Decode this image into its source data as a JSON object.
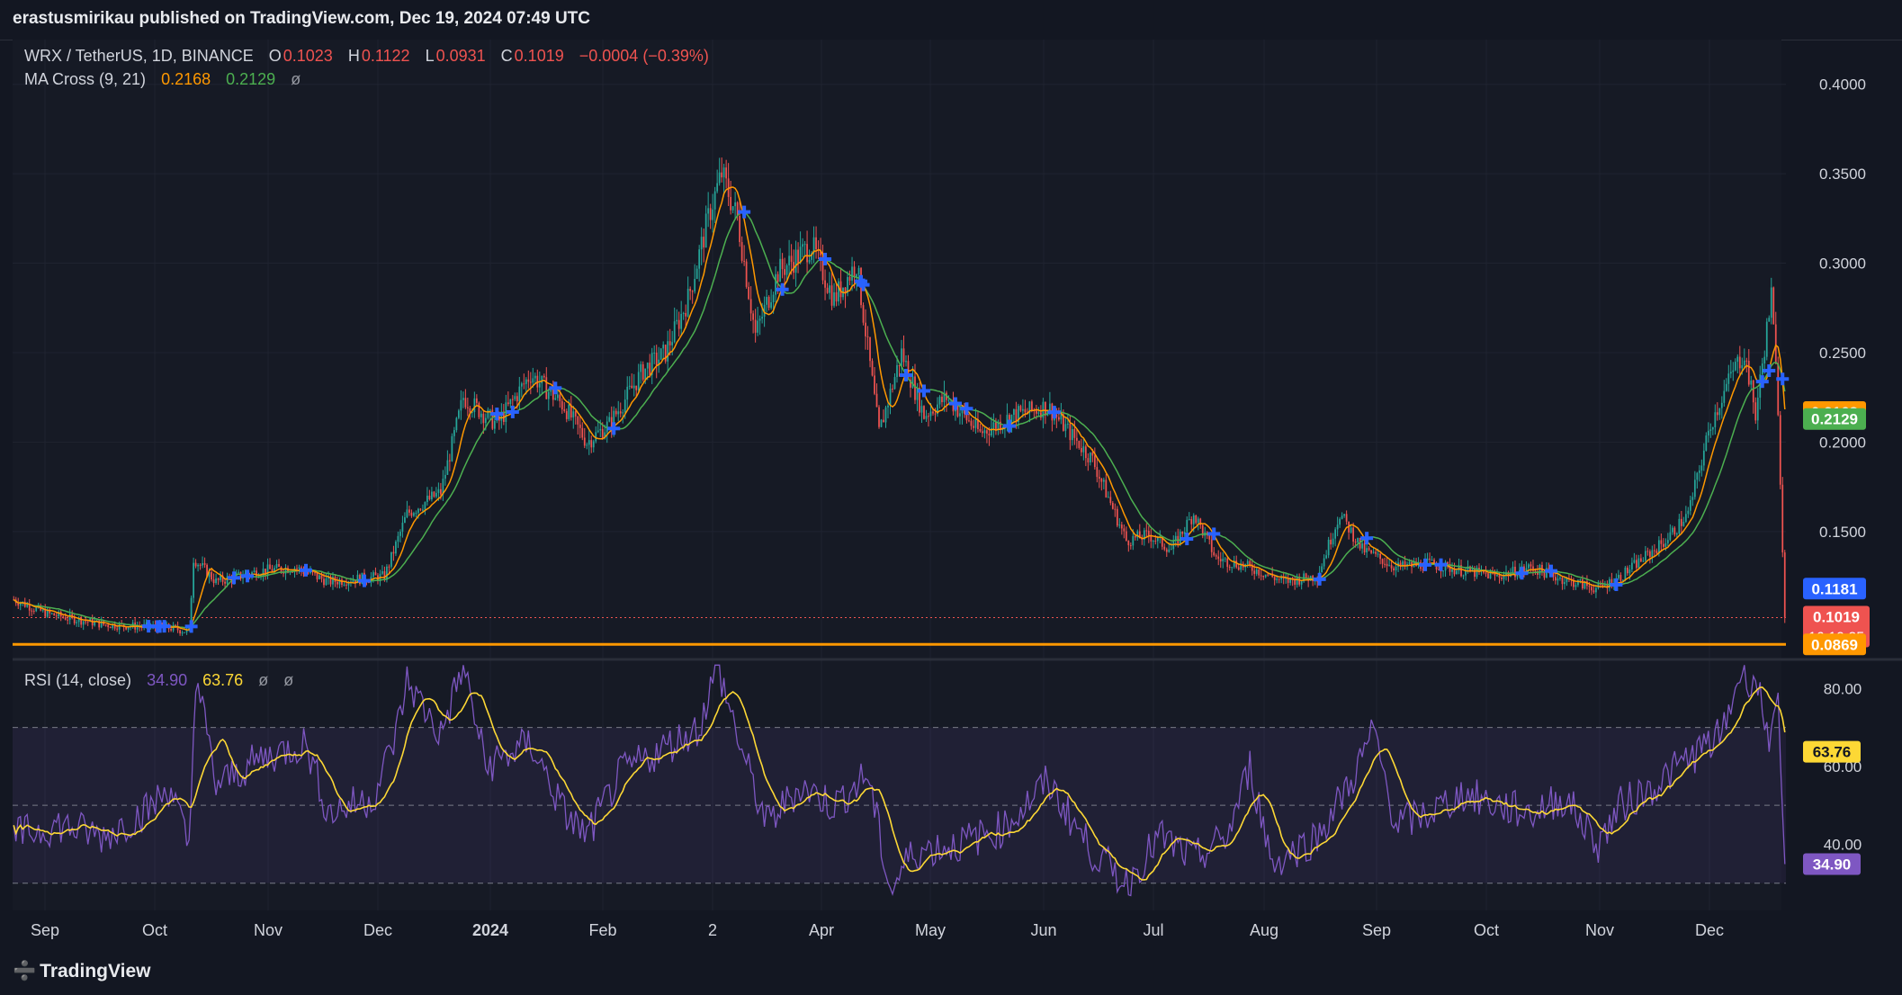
{
  "header": {
    "published": "erastusmirikau published on TradingView.com, Dec 19, 2024 07:49 UTC"
  },
  "legend": {
    "symbol": "WRX / TetherUS, 1D, BINANCE",
    "o_label": "O",
    "o_val": "0.1023",
    "h_label": "H",
    "h_val": "0.1122",
    "l_label": "L",
    "l_val": "0.0931",
    "c_label": "C",
    "c_val": "0.1019",
    "change": "−0.0004 (−0.39%)",
    "ma_title": "MA Cross (9, 21)",
    "ma_fast": "0.2168",
    "ma_slow": "0.2129",
    "ma_sym": "ø",
    "rsi_title": "RSI (14, close)",
    "rsi_val": "34.90",
    "rsi_ma": "63.76",
    "rsi_sym1": "ø",
    "rsi_sym2": "ø"
  },
  "footer": {
    "brand": "TradingView"
  },
  "colors": {
    "up": "#26a69a",
    "down": "#ef5350",
    "ma_fast": "#ff9800",
    "ma_slow": "#4caf50",
    "rsi": "#7e57c2",
    "rsi_ma": "#fdd835",
    "hline": "#ff9800",
    "cross": "#2962ff",
    "blue_tag": "#2962ff"
  },
  "chart_data": [
    {
      "type": "candlestick",
      "title": "WRX / TetherUS, 1D, BINANCE",
      "y_axis_ticks": [
        "0.1500",
        "0.2000",
        "0.2500",
        "0.3000",
        "0.3500",
        "0.4000"
      ],
      "ylim": [
        0.079,
        0.425
      ],
      "x_axis_ticks": [
        "Sep",
        "Oct",
        "Nov",
        "Dec",
        "2024",
        "Feb",
        "2",
        "Apr",
        "May",
        "Jun",
        "Jul",
        "Aug",
        "Sep",
        "Oct",
        "Nov",
        "Dec"
      ],
      "price_path": [
        {
          "d": 0,
          "v": 0.112
        },
        {
          "d": 15,
          "v": 0.104
        },
        {
          "d": 40,
          "v": 0.098
        },
        {
          "d": 70,
          "v": 0.096
        },
        {
          "d": 78,
          "v": 0.094
        },
        {
          "d": 80,
          "v": 0.135
        },
        {
          "d": 90,
          "v": 0.122
        },
        {
          "d": 110,
          "v": 0.128
        },
        {
          "d": 125,
          "v": 0.13
        },
        {
          "d": 140,
          "v": 0.122
        },
        {
          "d": 165,
          "v": 0.125
        },
        {
          "d": 175,
          "v": 0.16
        },
        {
          "d": 190,
          "v": 0.172
        },
        {
          "d": 200,
          "v": 0.225
        },
        {
          "d": 215,
          "v": 0.21
        },
        {
          "d": 230,
          "v": 0.238
        },
        {
          "d": 245,
          "v": 0.22
        },
        {
          "d": 255,
          "v": 0.2
        },
        {
          "d": 265,
          "v": 0.21
        },
        {
          "d": 280,
          "v": 0.24
        },
        {
          "d": 290,
          "v": 0.25
        },
        {
          "d": 300,
          "v": 0.28
        },
        {
          "d": 310,
          "v": 0.33
        },
        {
          "d": 315,
          "v": 0.35
        },
        {
          "d": 322,
          "v": 0.325
        },
        {
          "d": 330,
          "v": 0.26
        },
        {
          "d": 340,
          "v": 0.295
        },
        {
          "d": 355,
          "v": 0.31
        },
        {
          "d": 365,
          "v": 0.28
        },
        {
          "d": 375,
          "v": 0.3
        },
        {
          "d": 385,
          "v": 0.205
        },
        {
          "d": 395,
          "v": 0.25
        },
        {
          "d": 405,
          "v": 0.215
        },
        {
          "d": 415,
          "v": 0.225
        },
        {
          "d": 430,
          "v": 0.205
        },
        {
          "d": 445,
          "v": 0.215
        },
        {
          "d": 460,
          "v": 0.22
        },
        {
          "d": 470,
          "v": 0.205
        },
        {
          "d": 480,
          "v": 0.19
        },
        {
          "d": 495,
          "v": 0.145
        },
        {
          "d": 505,
          "v": 0.148
        },
        {
          "d": 515,
          "v": 0.14
        },
        {
          "d": 525,
          "v": 0.16
        },
        {
          "d": 535,
          "v": 0.135
        },
        {
          "d": 550,
          "v": 0.13
        },
        {
          "d": 565,
          "v": 0.122
        },
        {
          "d": 580,
          "v": 0.125
        },
        {
          "d": 590,
          "v": 0.16
        },
        {
          "d": 600,
          "v": 0.14
        },
        {
          "d": 615,
          "v": 0.13
        },
        {
          "d": 630,
          "v": 0.132
        },
        {
          "d": 645,
          "v": 0.128
        },
        {
          "d": 660,
          "v": 0.125
        },
        {
          "d": 675,
          "v": 0.13
        },
        {
          "d": 690,
          "v": 0.123
        },
        {
          "d": 705,
          "v": 0.118
        },
        {
          "d": 715,
          "v": 0.125
        },
        {
          "d": 725,
          "v": 0.135
        },
        {
          "d": 735,
          "v": 0.145
        },
        {
          "d": 745,
          "v": 0.16
        },
        {
          "d": 755,
          "v": 0.21
        },
        {
          "d": 765,
          "v": 0.24
        },
        {
          "d": 770,
          "v": 0.25
        },
        {
          "d": 775,
          "v": 0.215
        },
        {
          "d": 782,
          "v": 0.282
        },
        {
          "d": 785,
          "v": 0.22
        },
        {
          "d": 788,
          "v": 0.1
        }
      ],
      "ma_fast_value": 0.2168,
      "ma_slow_value": 0.2129,
      "horizontal_line": 0.0869,
      "last_close": 0.1019,
      "price_labels": [
        {
          "value": "0.2168",
          "kind": "ma_fast"
        },
        {
          "value": "0.2129",
          "kind": "ma_slow"
        },
        {
          "value": "0.1181",
          "kind": "blue"
        },
        {
          "value": "0.1019",
          "kind": "last",
          "countdown": "16:10:25"
        },
        {
          "value": "0.0869",
          "kind": "hline"
        }
      ]
    },
    {
      "type": "line",
      "title": "RSI (14, close)",
      "y_axis_ticks": [
        "40.00",
        "60.00",
        "80.00"
      ],
      "ylim": [
        23,
        87
      ],
      "bands": [
        30,
        50,
        70
      ],
      "rsi_path": [
        {
          "d": 0,
          "v": 42
        },
        {
          "d": 20,
          "v": 45
        },
        {
          "d": 40,
          "v": 42
        },
        {
          "d": 60,
          "v": 49
        },
        {
          "d": 70,
          "v": 55
        },
        {
          "d": 78,
          "v": 38
        },
        {
          "d": 81,
          "v": 84
        },
        {
          "d": 90,
          "v": 55
        },
        {
          "d": 110,
          "v": 62
        },
        {
          "d": 130,
          "v": 66
        },
        {
          "d": 140,
          "v": 48
        },
        {
          "d": 160,
          "v": 52
        },
        {
          "d": 170,
          "v": 68
        },
        {
          "d": 175,
          "v": 82
        },
        {
          "d": 190,
          "v": 68
        },
        {
          "d": 200,
          "v": 86
        },
        {
          "d": 210,
          "v": 60
        },
        {
          "d": 230,
          "v": 66
        },
        {
          "d": 245,
          "v": 48
        },
        {
          "d": 255,
          "v": 42
        },
        {
          "d": 270,
          "v": 58
        },
        {
          "d": 290,
          "v": 65
        },
        {
          "d": 305,
          "v": 70
        },
        {
          "d": 313,
          "v": 86
        },
        {
          "d": 325,
          "v": 62
        },
        {
          "d": 335,
          "v": 45
        },
        {
          "d": 350,
          "v": 55
        },
        {
          "d": 365,
          "v": 50
        },
        {
          "d": 380,
          "v": 58
        },
        {
          "d": 390,
          "v": 28
        },
        {
          "d": 400,
          "v": 38
        },
        {
          "d": 420,
          "v": 40
        },
        {
          "d": 440,
          "v": 44
        },
        {
          "d": 460,
          "v": 56
        },
        {
          "d": 480,
          "v": 38
        },
        {
          "d": 495,
          "v": 30
        },
        {
          "d": 510,
          "v": 42
        },
        {
          "d": 525,
          "v": 36
        },
        {
          "d": 540,
          "v": 42
        },
        {
          "d": 550,
          "v": 60
        },
        {
          "d": 560,
          "v": 35
        },
        {
          "d": 580,
          "v": 42
        },
        {
          "d": 595,
          "v": 56
        },
        {
          "d": 605,
          "v": 69
        },
        {
          "d": 615,
          "v": 45
        },
        {
          "d": 630,
          "v": 48
        },
        {
          "d": 645,
          "v": 53
        },
        {
          "d": 660,
          "v": 50
        },
        {
          "d": 675,
          "v": 48
        },
        {
          "d": 690,
          "v": 52
        },
        {
          "d": 705,
          "v": 40
        },
        {
          "d": 715,
          "v": 50
        },
        {
          "d": 730,
          "v": 55
        },
        {
          "d": 745,
          "v": 62
        },
        {
          "d": 760,
          "v": 68
        },
        {
          "d": 768,
          "v": 84
        },
        {
          "d": 775,
          "v": 82
        },
        {
          "d": 782,
          "v": 66
        },
        {
          "d": 785,
          "v": 74
        },
        {
          "d": 788,
          "v": 35
        }
      ],
      "rsi_ma_value": 63.76,
      "rsi_value": 34.9
    }
  ]
}
